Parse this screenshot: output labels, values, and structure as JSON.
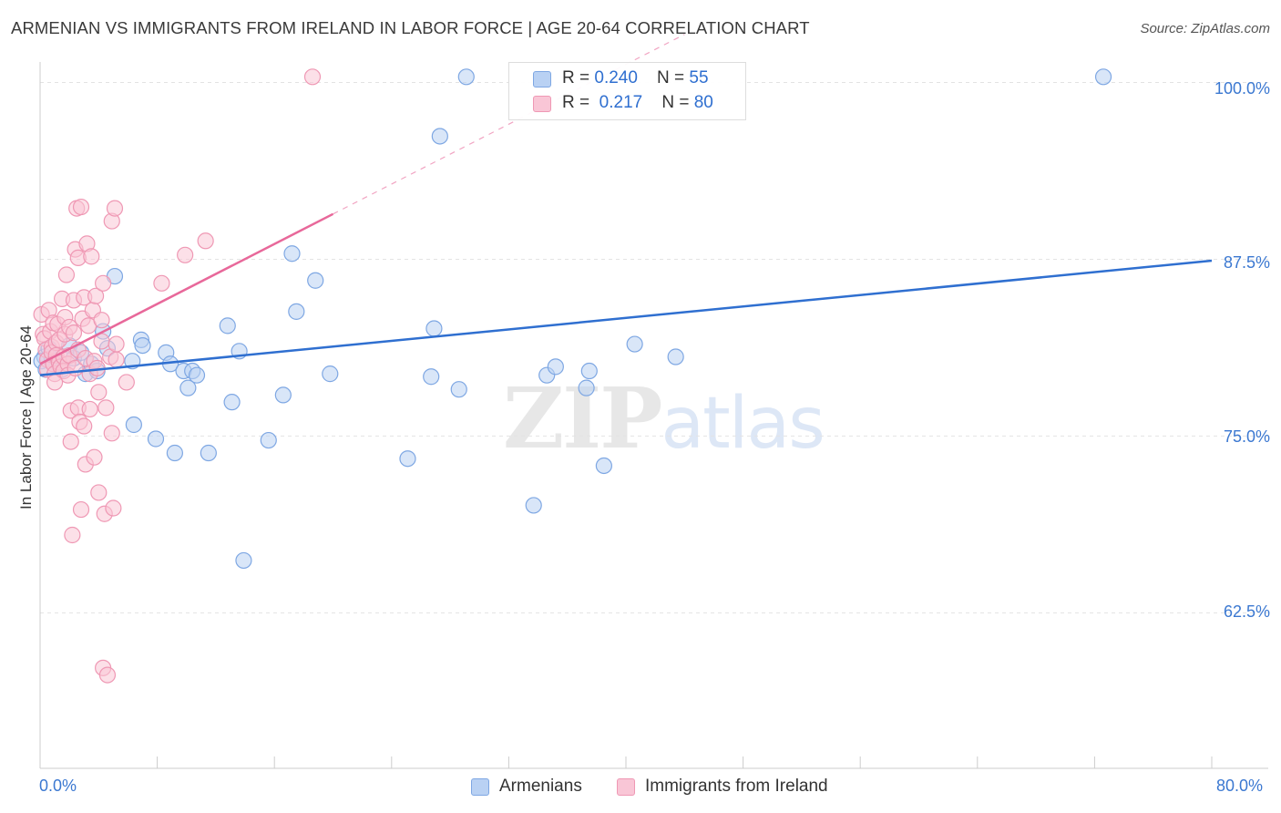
{
  "chart_data": {
    "type": "scatter",
    "title": "ARMENIAN VS IMMIGRANTS FROM IRELAND IN LABOR FORCE | AGE 20-64 CORRELATION CHART",
    "source": "Source: ZipAtlas.com",
    "xlabel": "",
    "ylabel": "In Labor Force | Age 20-64",
    "xlim": [
      0,
      80
    ],
    "ylim": [
      51.5,
      101
    ],
    "x_tick_labels": [
      "0.0%",
      "80.0%"
    ],
    "y_ticks": [
      62.5,
      75.0,
      87.5,
      100.0
    ],
    "y_tick_labels": [
      "62.5%",
      "75.0%",
      "87.5%",
      "100.0%"
    ],
    "watermark": {
      "zip": "ZIP",
      "atlas": "atlas"
    },
    "legend": {
      "blue_r_label": "R = ",
      "blue_r_value": "0.240",
      "blue_n_label": "N = ",
      "blue_n_value": "55",
      "pink_r_label": "R = ",
      "pink_r_value": " 0.217",
      "pink_n_label": "N = ",
      "pink_n_value": "80"
    },
    "series": [
      {
        "name": "Armenians",
        "color": "#7ea7e3",
        "fill": "#b9d1f3",
        "trend_color": "#2f6fd0",
        "trend": {
          "x0": 0,
          "y0": 79.3,
          "x1": 80,
          "y1": 87.4
        },
        "points": [
          [
            0.3,
            80.6
          ],
          [
            0.6,
            81.2
          ],
          [
            0.8,
            80.5
          ],
          [
            1.0,
            80.3
          ],
          [
            1.2,
            80.0
          ],
          [
            1.5,
            79.7
          ],
          [
            2.0,
            81.4
          ],
          [
            2.3,
            80.5
          ],
          [
            2.8,
            80.9
          ],
          [
            3.1,
            79.4
          ],
          [
            3.5,
            80.1
          ],
          [
            3.9,
            79.6
          ],
          [
            4.3,
            82.4
          ],
          [
            4.6,
            81.2
          ],
          [
            5.1,
            86.3
          ],
          [
            6.3,
            80.3
          ],
          [
            6.4,
            75.8
          ],
          [
            6.9,
            81.8
          ],
          [
            7.0,
            81.4
          ],
          [
            7.9,
            74.8
          ],
          [
            8.6,
            80.9
          ],
          [
            8.9,
            80.1
          ],
          [
            9.2,
            73.8
          ],
          [
            9.8,
            79.6
          ],
          [
            10.1,
            78.4
          ],
          [
            10.4,
            79.6
          ],
          [
            10.7,
            79.3
          ],
          [
            11.5,
            73.8
          ],
          [
            12.8,
            82.8
          ],
          [
            13.1,
            77.4
          ],
          [
            13.6,
            81.0
          ],
          [
            13.9,
            66.2
          ],
          [
            15.6,
            74.7
          ],
          [
            16.6,
            77.9
          ],
          [
            17.2,
            87.9
          ],
          [
            17.5,
            83.8
          ],
          [
            18.8,
            86.0
          ],
          [
            19.8,
            79.4
          ],
          [
            25.1,
            73.4
          ],
          [
            26.7,
            79.2
          ],
          [
            26.9,
            82.6
          ],
          [
            27.3,
            96.2
          ],
          [
            28.6,
            78.3
          ],
          [
            29.1,
            100.4
          ],
          [
            33.7,
            70.1
          ],
          [
            34.6,
            79.3
          ],
          [
            35.2,
            79.9
          ],
          [
            37.3,
            78.4
          ],
          [
            37.5,
            79.6
          ],
          [
            38.5,
            72.9
          ],
          [
            40.6,
            81.5
          ],
          [
            43.4,
            80.6
          ],
          [
            72.6,
            100.4
          ],
          [
            0.1,
            80.3
          ],
          [
            0.4,
            79.7
          ]
        ]
      },
      {
        "name": "Immigrants from Ireland",
        "color": "#ef98b4",
        "fill": "#f9c6d6",
        "trend_color": "#e8689a",
        "trend": {
          "x0": 0,
          "y0": 80.1,
          "x1": 20,
          "y1": 90.7
        },
        "trend_extended": {
          "x1": 44,
          "y1": 103.4
        },
        "points": [
          [
            0.1,
            83.6
          ],
          [
            0.2,
            82.2
          ],
          [
            0.3,
            81.9
          ],
          [
            0.4,
            81.1
          ],
          [
            0.5,
            80.4
          ],
          [
            0.5,
            79.7
          ],
          [
            0.6,
            83.9
          ],
          [
            0.7,
            82.4
          ],
          [
            0.8,
            81.3
          ],
          [
            0.8,
            80.9
          ],
          [
            0.9,
            83.0
          ],
          [
            0.9,
            80.1
          ],
          [
            1.0,
            79.4
          ],
          [
            1.1,
            81.6
          ],
          [
            1.1,
            80.7
          ],
          [
            1.2,
            82.9
          ],
          [
            1.3,
            81.8
          ],
          [
            1.3,
            80.2
          ],
          [
            1.4,
            79.9
          ],
          [
            1.5,
            84.7
          ],
          [
            1.6,
            80.6
          ],
          [
            1.6,
            79.6
          ],
          [
            1.7,
            83.4
          ],
          [
            1.7,
            82.2
          ],
          [
            1.8,
            86.4
          ],
          [
            1.9,
            80.1
          ],
          [
            1.9,
            79.3
          ],
          [
            2.0,
            82.7
          ],
          [
            2.0,
            80.7
          ],
          [
            2.1,
            76.8
          ],
          [
            2.1,
            74.6
          ],
          [
            2.2,
            68.0
          ],
          [
            2.3,
            84.6
          ],
          [
            2.3,
            82.3
          ],
          [
            2.4,
            79.8
          ],
          [
            2.4,
            88.2
          ],
          [
            2.5,
            91.1
          ],
          [
            2.6,
            87.6
          ],
          [
            2.6,
            81.1
          ],
          [
            2.6,
            77.0
          ],
          [
            2.7,
            76.0
          ],
          [
            2.8,
            69.8
          ],
          [
            2.8,
            91.2
          ],
          [
            2.9,
            83.3
          ],
          [
            3.0,
            84.8
          ],
          [
            3.0,
            75.7
          ],
          [
            3.1,
            73.0
          ],
          [
            3.1,
            80.5
          ],
          [
            3.2,
            88.6
          ],
          [
            3.3,
            82.8
          ],
          [
            3.4,
            79.4
          ],
          [
            3.4,
            76.9
          ],
          [
            3.5,
            87.7
          ],
          [
            3.6,
            83.9
          ],
          [
            3.7,
            80.3
          ],
          [
            3.7,
            73.5
          ],
          [
            3.8,
            84.9
          ],
          [
            3.9,
            79.8
          ],
          [
            4.0,
            78.1
          ],
          [
            4.0,
            71.0
          ],
          [
            4.2,
            83.2
          ],
          [
            4.2,
            81.7
          ],
          [
            4.3,
            85.8
          ],
          [
            4.3,
            58.6
          ],
          [
            4.4,
            69.5
          ],
          [
            4.5,
            77.0
          ],
          [
            4.6,
            58.1
          ],
          [
            4.8,
            80.6
          ],
          [
            4.9,
            90.2
          ],
          [
            4.9,
            75.2
          ],
          [
            5.0,
            69.9
          ],
          [
            5.1,
            91.1
          ],
          [
            5.2,
            81.5
          ],
          [
            5.2,
            80.4
          ],
          [
            5.9,
            78.8
          ],
          [
            8.3,
            85.8
          ],
          [
            9.9,
            87.8
          ],
          [
            11.3,
            88.8
          ],
          [
            18.6,
            100.4
          ],
          [
            1.0,
            78.8
          ]
        ]
      }
    ]
  }
}
